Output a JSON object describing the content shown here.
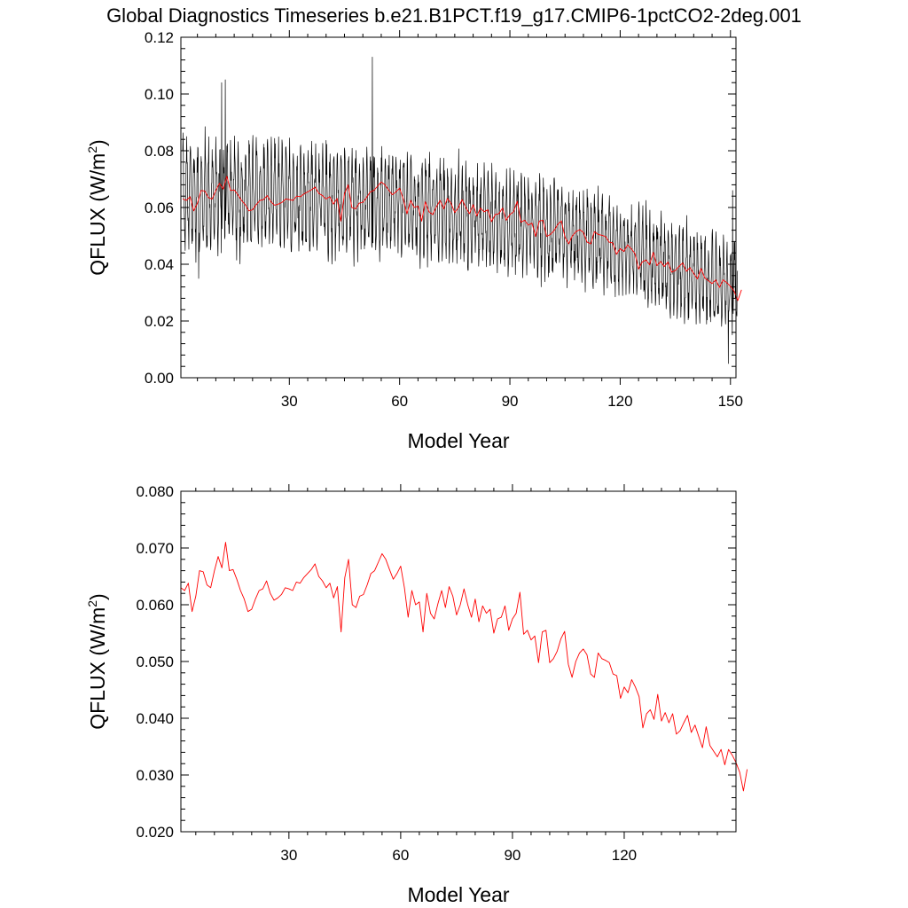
{
  "title": "Global Diagnostics Timeseries b.e21.B1PCT.f19_g17.CMIP6-1pctCO2-2deg.001",
  "colors": {
    "monthly": "#000000",
    "annual": "#ff0000",
    "axis": "#000000"
  },
  "chart_data": [
    {
      "type": "line",
      "xlabel": "Model Year",
      "ylabel": "QFLUX (W/m",
      "ylabel_sup": "2",
      "ylabel_close": ")",
      "xlim": [
        0.5,
        151.5
      ],
      "ylim": [
        0.0,
        0.12
      ],
      "xticks": [
        30,
        60,
        90,
        120,
        150
      ],
      "xtick_labels": [
        "30",
        "60",
        "90",
        "120",
        "150"
      ],
      "yticks": [
        0.0,
        0.02,
        0.04,
        0.06,
        0.08,
        0.1,
        0.12
      ],
      "ytick_labels": [
        "0.00",
        "0.02",
        "0.04",
        "0.06",
        "0.08",
        "0.10",
        "0.12"
      ],
      "monthly_series": {
        "start_year": 1,
        "end_year": 151,
        "points_per_year": 12,
        "trend_years": [
          1,
          30,
          60,
          90,
          120,
          150
        ],
        "trend_values": [
          0.064,
          0.064,
          0.061,
          0.055,
          0.046,
          0.031
        ],
        "seasonal_amplitude": [
          0.016,
          0.012
        ],
        "seasonal_phase": 0.9,
        "noise_amplitude": 0.006,
        "spikes": [
          {
            "year": 11.6,
            "value": 0.104
          },
          {
            "year": 12.6,
            "value": 0.105
          },
          {
            "year": 52.6,
            "value": 0.113
          },
          {
            "year": 5.3,
            "value": 0.035
          },
          {
            "year": 149.4,
            "value": 0.005
          },
          {
            "year": 150.6,
            "value": 0.066
          }
        ]
      },
      "annual_series": {
        "ref": "panel2.values"
      }
    },
    {
      "type": "line",
      "xlabel": "Model Year",
      "ylabel": "QFLUX (W/m",
      "ylabel_sup": "2",
      "ylabel_close": ")",
      "xlim": [
        1,
        150
      ],
      "ylim": [
        0.02,
        0.08
      ],
      "xticks": [
        30,
        60,
        90,
        120
      ],
      "xtick_labels": [
        "30",
        "60",
        "90",
        "120"
      ],
      "yticks": [
        0.02,
        0.03,
        0.04,
        0.05,
        0.06,
        0.07,
        0.08
      ],
      "ytick_labels": [
        "0.020",
        "0.030",
        "0.040",
        "0.050",
        "0.060",
        "0.070",
        "0.080"
      ],
      "x_start": 1,
      "values": [
        0.063,
        0.0625,
        0.0638,
        0.0588,
        0.0615,
        0.066,
        0.0658,
        0.0635,
        0.063,
        0.066,
        0.0685,
        0.0665,
        0.071,
        0.066,
        0.0662,
        0.0645,
        0.0625,
        0.061,
        0.0588,
        0.0592,
        0.061,
        0.0625,
        0.0628,
        0.0642,
        0.062,
        0.0608,
        0.0612,
        0.0618,
        0.063,
        0.0628,
        0.0625,
        0.064,
        0.0638,
        0.0648,
        0.0655,
        0.0662,
        0.0672,
        0.065,
        0.0642,
        0.063,
        0.0638,
        0.0612,
        0.0632,
        0.0552,
        0.0648,
        0.068,
        0.06,
        0.0595,
        0.0615,
        0.0618,
        0.0635,
        0.0655,
        0.066,
        0.0675,
        0.069,
        0.068,
        0.0662,
        0.0645,
        0.0655,
        0.0668,
        0.063,
        0.0578,
        0.0625,
        0.06,
        0.0605,
        0.0552,
        0.062,
        0.0585,
        0.0575,
        0.0602,
        0.0625,
        0.0595,
        0.0632,
        0.0615,
        0.0582,
        0.06,
        0.0628,
        0.06,
        0.0578,
        0.061,
        0.057,
        0.0598,
        0.0585,
        0.0592,
        0.055,
        0.0575,
        0.0578,
        0.0598,
        0.0555,
        0.0575,
        0.0585,
        0.0622,
        0.0548,
        0.0555,
        0.0538,
        0.0545,
        0.0498,
        0.0552,
        0.0555,
        0.0498,
        0.0505,
        0.0518,
        0.054,
        0.0553,
        0.0495,
        0.0472,
        0.05,
        0.0515,
        0.0522,
        0.0512,
        0.0478,
        0.0472,
        0.0515,
        0.0505,
        0.0502,
        0.0498,
        0.0478,
        0.0475,
        0.0435,
        0.0455,
        0.0445,
        0.0468,
        0.0455,
        0.0438,
        0.0383,
        0.0408,
        0.0415,
        0.0398,
        0.0442,
        0.0395,
        0.041,
        0.0392,
        0.0408,
        0.0372,
        0.0378,
        0.0392,
        0.0405,
        0.0375,
        0.0388,
        0.0368,
        0.0348,
        0.0385,
        0.0352,
        0.0342,
        0.0332,
        0.0345,
        0.0318,
        0.0345,
        0.0335,
        0.0322,
        0.0305,
        0.0272,
        0.031
      ]
    }
  ]
}
